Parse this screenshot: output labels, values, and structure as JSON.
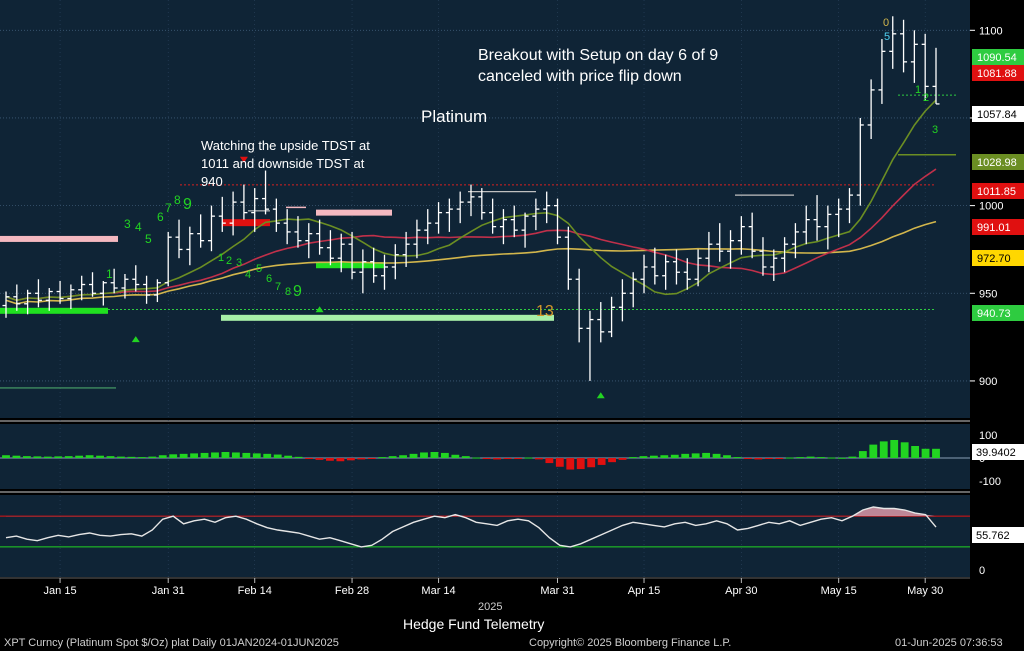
{
  "chart_data": [
    {
      "type": "bar",
      "title": "Platinum",
      "subtitle": "",
      "xlabel": "2025",
      "ylabel": "",
      "ylim": [
        880,
        1115
      ],
      "yticks": [
        900,
        950,
        1000,
        1050,
        1100
      ],
      "xticks": [
        "Jan 15",
        "Jan 31",
        "Feb 14",
        "Feb 28",
        "Mar 14",
        "Mar 31",
        "Apr 15",
        "Apr 30",
        "May 15",
        "May 30"
      ],
      "price_labels": [
        {
          "value": "1090.54",
          "color": "#2ecc40",
          "y": 1090.54
        },
        {
          "value": "1081.88",
          "color": "#e01010",
          "y": 1081.88
        },
        {
          "value": "1057.84",
          "color": "#ffffff",
          "y": 1057.84
        },
        {
          "value": "1028.98",
          "color": "#6b8e23",
          "y": 1028.98
        },
        {
          "value": "1011.85",
          "color": "#e01010",
          "y": 1011.85
        },
        {
          "value": "991.01",
          "color": "#e01010",
          "y": 991.01
        },
        {
          "value": "972.70",
          "color": "#ffd700",
          "y": 972.7
        },
        {
          "value": "940.73",
          "color": "#2ecc40",
          "y": 940.73
        }
      ],
      "ohlc": [
        [
          943,
          951,
          936,
          948
        ],
        [
          948,
          955,
          940,
          944
        ],
        [
          944,
          952,
          938,
          950
        ],
        [
          950,
          958,
          942,
          946
        ],
        [
          946,
          953,
          940,
          951
        ],
        [
          951,
          957,
          944,
          947
        ],
        [
          947,
          955,
          941,
          952
        ],
        [
          952,
          960,
          946,
          955
        ],
        [
          955,
          962,
          948,
          950
        ],
        [
          950,
          957,
          943,
          956
        ],
        [
          956,
          964,
          950,
          953
        ],
        [
          953,
          961,
          947,
          958
        ],
        [
          958,
          966,
          951,
          955
        ],
        [
          955,
          960,
          944,
          949
        ],
        [
          949,
          958,
          945,
          956
        ],
        [
          956,
          985,
          954,
          982
        ],
        [
          982,
          992,
          970,
          975
        ],
        [
          975,
          988,
          966,
          984
        ],
        [
          984,
          995,
          976,
          980
        ],
        [
          980,
          1000,
          974,
          994
        ],
        [
          994,
          1005,
          985,
          990
        ],
        [
          990,
          1008,
          983,
          1002
        ],
        [
          1002,
          1012,
          992,
          996
        ],
        [
          996,
          1010,
          985,
          1004
        ],
        [
          1004,
          1020,
          995,
          998
        ],
        [
          998,
          1004,
          985,
          990
        ],
        [
          990,
          998,
          978,
          985
        ],
        [
          985,
          994,
          976,
          980
        ],
        [
          980,
          990,
          970,
          984
        ],
        [
          984,
          992,
          972,
          976
        ],
        [
          976,
          986,
          966,
          970
        ],
        [
          970,
          984,
          962,
          978
        ],
        [
          978,
          985,
          958,
          962
        ],
        [
          962,
          975,
          950,
          968
        ],
        [
          968,
          976,
          956,
          960
        ],
        [
          960,
          972,
          952,
          965
        ],
        [
          965,
          978,
          958,
          972
        ],
        [
          972,
          985,
          965,
          978
        ],
        [
          978,
          992,
          970,
          986
        ],
        [
          986,
          998,
          978,
          990
        ],
        [
          990,
          1002,
          984,
          996
        ],
        [
          996,
          1004,
          985,
          998
        ],
        [
          998,
          1008,
          990,
          1002
        ],
        [
          1002,
          1012,
          994,
          1005
        ],
        [
          1005,
          1010,
          992,
          996
        ],
        [
          996,
          1004,
          984,
          988
        ],
        [
          988,
          998,
          978,
          992
        ],
        [
          992,
          1000,
          982,
          986
        ],
        [
          986,
          996,
          976,
          994
        ],
        [
          994,
          1004,
          986,
          998
        ],
        [
          998,
          1008,
          990,
          1000
        ],
        [
          1000,
          1004,
          978,
          982
        ],
        [
          982,
          988,
          952,
          958
        ],
        [
          958,
          964,
          922,
          930
        ],
        [
          930,
          940,
          900,
          935
        ],
        [
          935,
          945,
          922,
          928
        ],
        [
          928,
          948,
          925,
          942
        ],
        [
          942,
          958,
          934,
          950
        ],
        [
          950,
          962,
          942,
          958
        ],
        [
          958,
          972,
          950,
          965
        ],
        [
          965,
          976,
          955,
          960
        ],
        [
          960,
          972,
          952,
          968
        ],
        [
          968,
          975,
          955,
          962
        ],
        [
          962,
          970,
          952,
          958
        ],
        [
          958,
          975,
          954,
          970
        ],
        [
          970,
          985,
          962,
          978
        ],
        [
          978,
          990,
          968,
          974
        ],
        [
          974,
          986,
          964,
          980
        ],
        [
          980,
          994,
          972,
          988
        ],
        [
          988,
          996,
          970,
          974
        ],
        [
          974,
          982,
          960,
          965
        ],
        [
          965,
          975,
          957,
          970
        ],
        [
          970,
          982,
          962,
          978
        ],
        [
          978,
          990,
          970,
          985
        ],
        [
          985,
          1000,
          978,
          992
        ],
        [
          992,
          1006,
          980,
          988
        ],
        [
          988,
          1000,
          975,
          995
        ],
        [
          995,
          1004,
          982,
          998
        ],
        [
          998,
          1010,
          990,
          1006
        ],
        [
          1006,
          1050,
          1000,
          1046
        ],
        [
          1046,
          1072,
          1038,
          1066
        ],
        [
          1066,
          1095,
          1058,
          1088
        ],
        [
          1088,
          1108,
          1078,
          1098
        ],
        [
          1098,
          1106,
          1076,
          1082
        ],
        [
          1082,
          1100,
          1070,
          1092
        ],
        [
          1092,
          1098,
          1060,
          1068
        ],
        [
          1068,
          1090,
          1058,
          1058
        ]
      ],
      "series": [
        {
          "name": "",
          "color": "#d2b64c",
          "values_note": ""
        },
        {
          "name": "",
          "color": "#c0304a"
        },
        {
          "name": "",
          "color": "#6b8e23"
        }
      ],
      "annotations": [
        {
          "text": "Breakout with Setup on day 6 of 9"
        },
        {
          "text": "canceled with price flip down"
        },
        {
          "text": "Watching the upside TDST at"
        },
        {
          "text": "1011 and downside TDST at"
        },
        {
          "text": "940"
        }
      ]
    },
    {
      "type": "bar",
      "title": "",
      "ylim": [
        -130,
        130
      ],
      "yticks": [
        100,
        0,
        -100
      ],
      "last_value": "39.9402",
      "values": [
        12,
        10,
        8,
        7,
        6,
        7,
        8,
        10,
        12,
        10,
        8,
        6,
        5,
        4,
        6,
        12,
        16,
        18,
        20,
        22,
        24,
        26,
        24,
        22,
        20,
        18,
        15,
        10,
        5,
        -4,
        -8,
        -12,
        -14,
        -10,
        -6,
        -2,
        4,
        8,
        12,
        18,
        24,
        26,
        22,
        14,
        8,
        2,
        -4,
        -6,
        -4,
        -2,
        2,
        -6,
        -22,
        -38,
        -50,
        -48,
        -40,
        -30,
        -18,
        -8,
        4,
        8,
        10,
        12,
        14,
        18,
        20,
        22,
        18,
        12,
        4,
        -4,
        -6,
        -4,
        -2,
        2,
        4,
        6,
        4,
        2,
        1,
        6,
        30,
        58,
        72,
        78,
        68,
        52,
        40,
        39.94
      ]
    },
    {
      "type": "line",
      "title": "",
      "ylim": [
        -8,
        95
      ],
      "yticks": [
        0,
        50
      ],
      "upper_band": 70,
      "lower_band": 30,
      "last_value": "55.762",
      "values": [
        42,
        44,
        40,
        38,
        42,
        45,
        43,
        46,
        48,
        45,
        44,
        46,
        47,
        44,
        52,
        66,
        70,
        60,
        64,
        66,
        62,
        68,
        70,
        66,
        60,
        55,
        52,
        50,
        48,
        44,
        40,
        42,
        38,
        34,
        30,
        32,
        40,
        50,
        56,
        62,
        66,
        70,
        68,
        72,
        68,
        62,
        60,
        58,
        64,
        66,
        64,
        55,
        42,
        32,
        30,
        34,
        40,
        46,
        52,
        58,
        62,
        60,
        58,
        56,
        60,
        62,
        58,
        60,
        64,
        60,
        52,
        54,
        58,
        62,
        60,
        64,
        58,
        62,
        66,
        68,
        64,
        70,
        78,
        82,
        80,
        80,
        78,
        74,
        72,
        55.762
      ]
    }
  ],
  "indicators": {
    "setup_top": [
      "1",
      "3",
      "4",
      "5",
      "6",
      "7",
      "8",
      "9"
    ],
    "setup_bottom": [
      "1",
      "2",
      "3",
      "4",
      "5",
      "6",
      "7",
      "8",
      "9"
    ],
    "count_13": "13",
    "recent_counts": [
      "0",
      "5",
      "1",
      "2",
      "3"
    ]
  },
  "footer": {
    "left": "XPT Curncy (Platinum Spot  $/Oz) plat  Daily 01JAN2024-01JUN2025",
    "center_top": "Hedge Fund Telemetry",
    "center_bottom": "Copyright© 2025 Bloomberg Finance L.P.",
    "right": "01-Jun-2025 07:36:53"
  },
  "colors": {
    "background": "#0f2436",
    "grid": "#3d5a75",
    "text": "#ffffff",
    "bull": "#22d422",
    "bear": "#e01010"
  }
}
